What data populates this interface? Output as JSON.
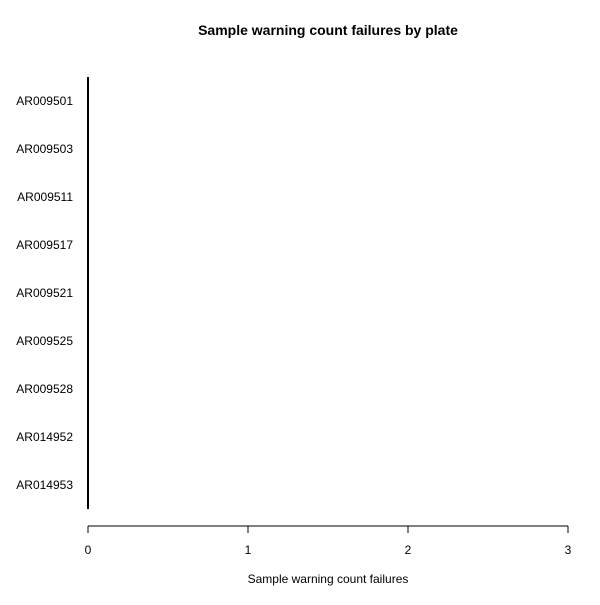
{
  "chart_data": {
    "type": "bar",
    "orientation": "horizontal",
    "title": "Sample warning count failures by plate",
    "xlabel": "Sample warning count failures",
    "ylabel": "",
    "categories": [
      "AR014953",
      "AR014952",
      "AR009528",
      "AR009525",
      "AR009521",
      "AR009517",
      "AR009511",
      "AR009503",
      "AR009501"
    ],
    "values": [
      0,
      0,
      0,
      0,
      0,
      0,
      0,
      0,
      0
    ],
    "xlim": [
      0,
      3
    ],
    "xticks": [
      "0",
      "1",
      "2",
      "3"
    ],
    "grid": false,
    "legend": "none",
    "colors": {
      "axis": "#000000",
      "bar": "#000000",
      "background": "#ffffff"
    }
  }
}
